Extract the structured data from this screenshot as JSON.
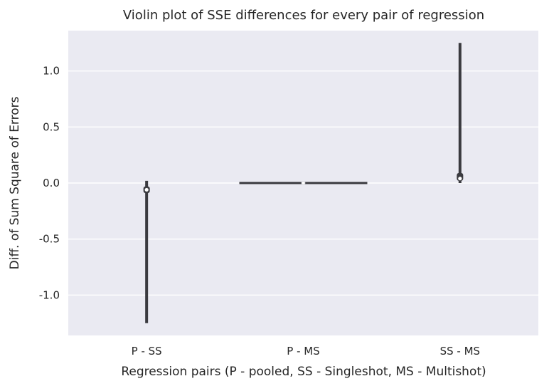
{
  "chart_data": {
    "type": "violin",
    "title": "Violin plot of SSE differences for every pair of regression",
    "xlabel": "Regression pairs (P - pooled, SS - Singleshot, MS - Multishot)",
    "ylabel": "Diff. of Sum Square of Errors",
    "categories": [
      "P - SS",
      "P - MS",
      "SS - MS"
    ],
    "yticks": [
      -1.0,
      -0.5,
      0.0,
      0.5,
      1.0
    ],
    "ytick_labels": [
      "-1.0",
      "-0.5",
      "0.0",
      "0.5",
      "1.0"
    ],
    "ylim": [
      -1.36,
      1.36
    ],
    "grid": true,
    "colors": {
      "background": "#eaeaf2",
      "grid": "#ffffff",
      "violin": "#3a3a3f",
      "median": "#ffffff"
    },
    "series": [
      {
        "category": "P - SS",
        "min": -1.25,
        "max": 0.02,
        "q1": -0.09,
        "q3": -0.03,
        "median": -0.06
      },
      {
        "category": "P - MS",
        "min": 0.0,
        "max": 0.0,
        "q1": 0.0,
        "q3": 0.0,
        "median": 0.0
      },
      {
        "category": "SS - MS",
        "min": 0.0,
        "max": 1.25,
        "q1": 0.02,
        "q3": 0.09,
        "median": 0.04
      }
    ]
  }
}
